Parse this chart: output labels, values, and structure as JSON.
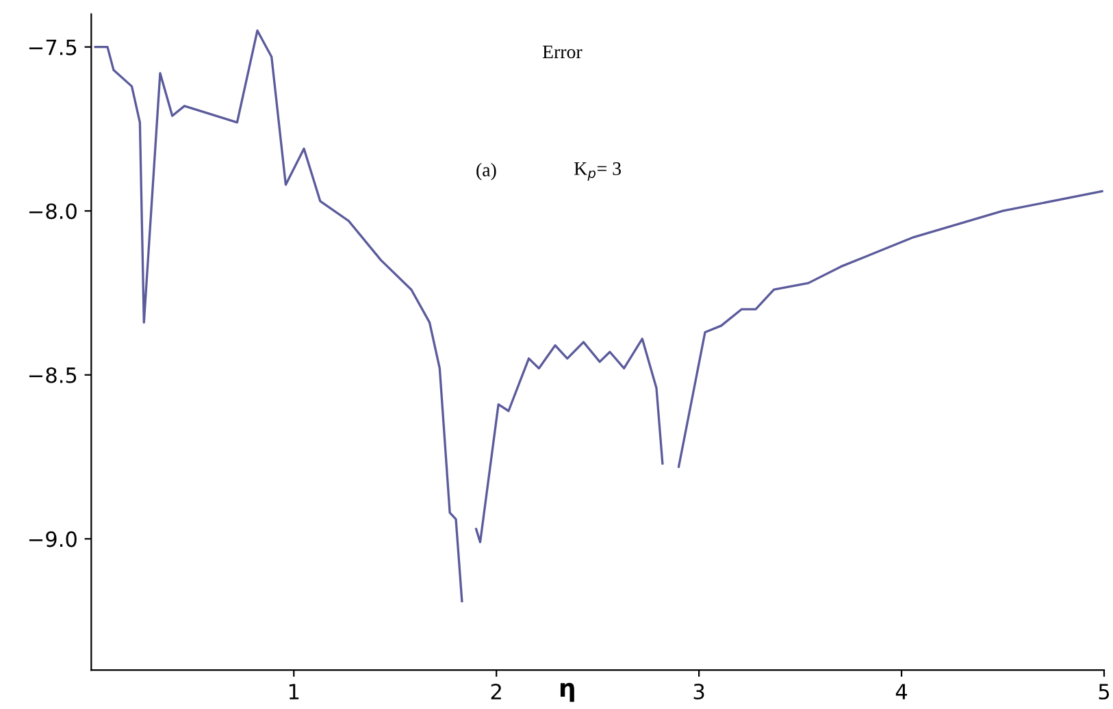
{
  "chart_data": {
    "type": "line",
    "xlabel": "η",
    "annotations": [
      "Error",
      "(a)",
      "K$_{p}$= 3"
    ],
    "xlim": [
      0,
      5.0
    ],
    "ylim": [
      -9.4,
      -7.4
    ],
    "xticks": [
      1,
      2,
      3,
      4,
      5
    ],
    "yticks": [
      {
        "value": -9.0,
        "label": "−9.0"
      },
      {
        "value": -8.5,
        "label": "−8.5"
      },
      {
        "value": -8.0,
        "label": "−8.0"
      },
      {
        "value": -7.5,
        "label": "−7.5"
      }
    ],
    "grid": false,
    "legend": false,
    "marker": "none",
    "line_style": "solid",
    "series": [
      {
        "color": "#5b5b9c",
        "x": [
          0.02,
          0.08,
          0.11,
          0.2,
          0.24,
          0.26,
          0.34,
          0.4,
          0.46,
          0.72,
          0.82,
          0.89,
          0.96,
          1.05,
          1.13,
          1.27,
          1.43,
          1.58,
          1.67,
          1.72,
          1.77,
          1.8,
          1.83,
          1.85,
          1.87,
          1.9,
          1.92,
          2.01,
          2.06,
          2.16,
          2.21,
          2.29,
          2.35,
          2.43,
          2.51,
          2.56,
          2.63,
          2.72,
          2.79,
          2.82,
          2.85,
          2.87,
          2.9,
          3.03,
          3.11,
          3.21,
          3.28,
          3.37,
          3.54,
          3.7,
          4.06,
          4.5,
          4.99
        ],
        "values": [
          -7.5,
          -7.5,
          -7.57,
          -7.62,
          -7.73,
          -8.34,
          -7.58,
          -7.71,
          -7.68,
          -7.73,
          -7.45,
          -7.53,
          -7.92,
          -7.81,
          -7.97,
          -8.03,
          -8.15,
          -8.24,
          -8.34,
          -8.48,
          -8.92,
          -8.94,
          -9.19,
          null,
          null,
          -8.97,
          -9.01,
          -8.59,
          -8.61,
          -8.45,
          -8.48,
          -8.41,
          -8.45,
          -8.4,
          -8.46,
          -8.43,
          -8.48,
          -8.39,
          -8.54,
          -8.77,
          null,
          null,
          -8.78,
          -8.37,
          -8.35,
          -8.3,
          -8.3,
          -8.24,
          -8.22,
          -8.17,
          -8.08,
          -8.0,
          -7.94
        ]
      }
    ]
  }
}
